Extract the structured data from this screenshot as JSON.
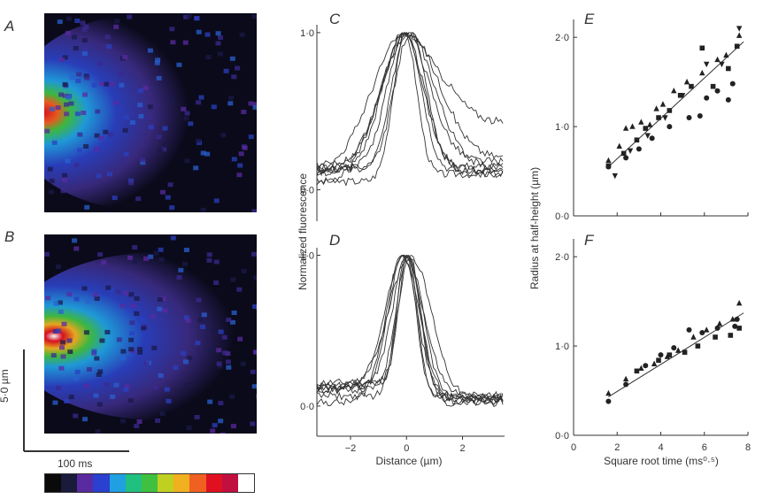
{
  "panels": {
    "A": "A",
    "B": "B",
    "C": "C",
    "D": "D",
    "E": "E",
    "F": "F"
  },
  "scalebar": {
    "vertical_label": "5·0 µm",
    "horizontal_label": "100 ms"
  },
  "colors": {
    "colorbar": [
      "#0a0a0a",
      "#1a1a3a",
      "#5a2aa0",
      "#2a40d0",
      "#20a0e0",
      "#20c080",
      "#40c040",
      "#c0d020",
      "#f0b020",
      "#f06020",
      "#e01020",
      "#c01040",
      "#ffffff"
    ]
  },
  "chart_data": [
    {
      "panel": "C",
      "type": "line",
      "xlabel": "",
      "ylabel": "Normalized fluorescence",
      "xlim": [
        -3.2,
        3.5
      ],
      "ylim": [
        -0.2,
        1.05
      ],
      "yticks": [
        "1·0",
        "0·0"
      ],
      "xticks": [],
      "note": "several overlaid normalized line profiles"
    },
    {
      "panel": "D",
      "type": "line",
      "xlabel": "Distance (µm)",
      "ylabel": "",
      "xlim": [
        -3.2,
        3.5
      ],
      "ylim": [
        -0.2,
        1.05
      ],
      "yticks": [
        "1·0",
        "0·0"
      ],
      "xticks": [
        "−2",
        "0",
        "2"
      ]
    },
    {
      "panel": "E",
      "type": "scatter",
      "xlabel": "",
      "ylabel": "Radius at half-height (µm)",
      "xlim": [
        0,
        8
      ],
      "ylim": [
        0,
        2.2
      ],
      "yticks": [
        "2·0",
        "1·0",
        "0·0"
      ],
      "fit_line": [
        [
          1.6,
          0.55
        ],
        [
          7.8,
          1.95
        ]
      ],
      "series": [
        {
          "marker": "triangle-up",
          "points": [
            [
              1.6,
              0.62
            ],
            [
              2.1,
              0.78
            ],
            [
              2.4,
              0.98
            ],
            [
              2.7,
              1.0
            ],
            [
              3.1,
              1.05
            ],
            [
              3.5,
              1.02
            ],
            [
              3.8,
              1.2
            ],
            [
              4.1,
              1.25
            ],
            [
              4.6,
              1.4
            ],
            [
              5.2,
              1.5
            ],
            [
              5.9,
              1.6
            ],
            [
              6.6,
              1.75
            ],
            [
              7.0,
              1.8
            ],
            [
              7.6,
              2.02
            ]
          ]
        },
        {
          "marker": "triangle-down",
          "points": [
            [
              1.9,
              0.45
            ],
            [
              2.6,
              0.73
            ],
            [
              3.4,
              0.9
            ],
            [
              4.2,
              1.1
            ],
            [
              5.0,
              1.35
            ],
            [
              6.1,
              1.7
            ],
            [
              6.8,
              1.7
            ],
            [
              7.6,
              2.1
            ]
          ]
        },
        {
          "marker": "square",
          "points": [
            [
              1.6,
              0.56
            ],
            [
              2.3,
              0.7
            ],
            [
              2.9,
              0.85
            ],
            [
              3.3,
              0.98
            ],
            [
              3.9,
              1.1
            ],
            [
              4.4,
              1.18
            ],
            [
              4.9,
              1.35
            ],
            [
              5.4,
              1.45
            ],
            [
              5.9,
              1.88
            ],
            [
              6.4,
              1.45
            ],
            [
              7.1,
              1.65
            ],
            [
              7.5,
              1.9
            ]
          ]
        },
        {
          "marker": "circle",
          "points": [
            [
              1.6,
              0.55
            ],
            [
              2.4,
              0.65
            ],
            [
              3.0,
              0.75
            ],
            [
              3.6,
              0.87
            ],
            [
              4.4,
              1.0
            ],
            [
              5.3,
              1.1
            ],
            [
              5.8,
              1.12
            ],
            [
              6.1,
              1.32
            ],
            [
              6.6,
              1.4
            ],
            [
              7.1,
              1.3
            ],
            [
              7.3,
              1.48
            ]
          ]
        }
      ]
    },
    {
      "panel": "F",
      "type": "scatter",
      "xlabel": "Square root time (ms⁰·⁵)",
      "ylabel": "",
      "xlim": [
        0,
        8
      ],
      "ylim": [
        0,
        2.2
      ],
      "yticks": [
        "2·0",
        "1·0",
        "0·0"
      ],
      "xticks": [
        "0",
        "2",
        "4",
        "6",
        "8"
      ],
      "fit_line": [
        [
          1.6,
          0.43
        ],
        [
          7.8,
          1.37
        ]
      ],
      "series": [
        {
          "marker": "triangle-up",
          "points": [
            [
              1.6,
              0.47
            ],
            [
              2.4,
              0.63
            ],
            [
              3.1,
              0.75
            ],
            [
              3.7,
              0.8
            ],
            [
              4.3,
              0.88
            ],
            [
              4.8,
              0.95
            ],
            [
              5.5,
              1.1
            ],
            [
              6.1,
              1.18
            ],
            [
              6.7,
              1.25
            ],
            [
              7.3,
              1.3
            ],
            [
              7.6,
              1.48
            ]
          ]
        },
        {
          "marker": "square",
          "points": [
            [
              2.9,
              0.72
            ],
            [
              3.9,
              0.84
            ],
            [
              4.4,
              0.9
            ],
            [
              5.1,
              0.93
            ],
            [
              5.7,
              1.0
            ],
            [
              6.5,
              1.1
            ],
            [
              7.2,
              1.12
            ],
            [
              7.6,
              1.2
            ]
          ]
        },
        {
          "marker": "circle",
          "points": [
            [
              1.6,
              0.38
            ],
            [
              2.4,
              0.57
            ],
            [
              3.3,
              0.78
            ],
            [
              4.0,
              0.9
            ],
            [
              4.6,
              0.98
            ],
            [
              5.3,
              1.18
            ],
            [
              5.9,
              1.15
            ],
            [
              6.6,
              1.2
            ],
            [
              7.4,
              1.22
            ],
            [
              7.5,
              1.3
            ]
          ]
        }
      ]
    }
  ],
  "labels": {
    "c_ylabel": "Normalized fluorescence",
    "d_xlabel": "Distance (µm)",
    "ef_ylabel": "Radius at half-height (µm)",
    "f_xlabel": "Square root time (ms⁰·⁵)"
  }
}
